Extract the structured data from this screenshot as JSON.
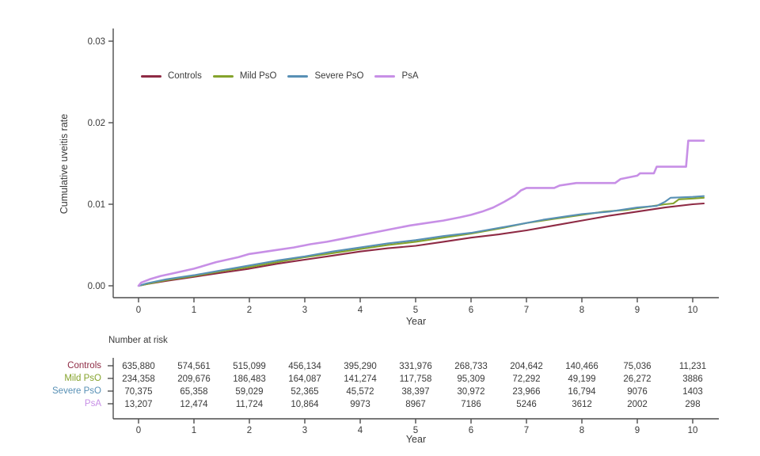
{
  "figure": {
    "ylabel": "Cumulative uveitis rate",
    "xlabel": "Year",
    "risk_header": "Number at risk",
    "risk_xlabel": "Year"
  },
  "chart_data": {
    "type": "line",
    "title": "",
    "xlabel": "Year",
    "ylabel": "Cumulative uveitis rate",
    "xlim": [
      0,
      10.5
    ],
    "ylim": [
      0,
      0.03
    ],
    "grid": false,
    "legend_position": "top-inside",
    "axis_color": "#4c4c4c",
    "text_color": "#3a3a3a",
    "x_ticks": [
      0,
      1,
      2,
      3,
      4,
      5,
      6,
      7,
      8,
      9,
      10
    ],
    "y_tick_values": [
      0,
      0.01,
      0.02,
      0.03
    ],
    "y_tick_labels": [
      "0.00",
      "0.01",
      "0.02",
      "0.03"
    ],
    "series": [
      {
        "name": "Controls",
        "color": "#8e2a44",
        "points": [
          [
            0,
            0
          ],
          [
            0.15,
            0.0002
          ],
          [
            0.5,
            0.0006
          ],
          [
            1,
            0.0011
          ],
          [
            1.5,
            0.0016
          ],
          [
            2,
            0.0021
          ],
          [
            2.5,
            0.0027
          ],
          [
            3,
            0.0032
          ],
          [
            3.5,
            0.0037
          ],
          [
            4,
            0.0042
          ],
          [
            4.5,
            0.0046
          ],
          [
            5,
            0.0049
          ],
          [
            5.5,
            0.0054
          ],
          [
            6,
            0.0059
          ],
          [
            6.5,
            0.0063
          ],
          [
            7,
            0.0068
          ],
          [
            7.5,
            0.0074
          ],
          [
            8,
            0.008
          ],
          [
            8.5,
            0.0086
          ],
          [
            9,
            0.0091
          ],
          [
            9.5,
            0.0096
          ],
          [
            10,
            0.01
          ],
          [
            10.2,
            0.0101
          ]
        ]
      },
      {
        "name": "Mild PsO",
        "color": "#85a32c",
        "points": [
          [
            0,
            0
          ],
          [
            0.15,
            0.0002
          ],
          [
            0.5,
            0.0007
          ],
          [
            1,
            0.0012
          ],
          [
            1.5,
            0.0018
          ],
          [
            2,
            0.0023
          ],
          [
            2.5,
            0.0029
          ],
          [
            3,
            0.0035
          ],
          [
            3.5,
            0.004
          ],
          [
            4,
            0.0045
          ],
          [
            4.5,
            0.005
          ],
          [
            5,
            0.0054
          ],
          [
            5.5,
            0.0059
          ],
          [
            6,
            0.0064
          ],
          [
            6.5,
            0.007
          ],
          [
            7,
            0.0077
          ],
          [
            7.5,
            0.0082
          ],
          [
            8,
            0.0087
          ],
          [
            8.4,
            0.0091
          ],
          [
            8.8,
            0.0093
          ],
          [
            9,
            0.0095
          ],
          [
            9.3,
            0.0098
          ],
          [
            9.5,
            0.01
          ],
          [
            9.65,
            0.0101
          ],
          [
            9.75,
            0.0106
          ],
          [
            10,
            0.0107
          ],
          [
            10.2,
            0.0108
          ]
        ]
      },
      {
        "name": "Severe PsO",
        "color": "#5890b5",
        "points": [
          [
            0,
            0
          ],
          [
            0.15,
            0.0003
          ],
          [
            0.5,
            0.0008
          ],
          [
            1,
            0.0013
          ],
          [
            1.5,
            0.0019
          ],
          [
            2,
            0.0025
          ],
          [
            2.5,
            0.0031
          ],
          [
            3,
            0.0036
          ],
          [
            3.5,
            0.0042
          ],
          [
            4,
            0.0047
          ],
          [
            4.5,
            0.0052
          ],
          [
            5,
            0.0056
          ],
          [
            5.5,
            0.0061
          ],
          [
            6,
            0.0065
          ],
          [
            6.5,
            0.0071
          ],
          [
            7,
            0.0077
          ],
          [
            7.3,
            0.0081
          ],
          [
            7.7,
            0.0085
          ],
          [
            8,
            0.0088
          ],
          [
            8.5,
            0.0091
          ],
          [
            9,
            0.0096
          ],
          [
            9.35,
            0.0098
          ],
          [
            9.5,
            0.0103
          ],
          [
            9.6,
            0.0108
          ],
          [
            10,
            0.0109
          ],
          [
            10.2,
            0.011
          ]
        ]
      },
      {
        "name": "PsA",
        "color": "#c78fe6",
        "points": [
          [
            0,
            0
          ],
          [
            0.05,
            0.0004
          ],
          [
            0.2,
            0.0008
          ],
          [
            0.4,
            0.0012
          ],
          [
            0.6,
            0.0015
          ],
          [
            0.8,
            0.0018
          ],
          [
            1,
            0.0021
          ],
          [
            1.2,
            0.0025
          ],
          [
            1.4,
            0.0029
          ],
          [
            1.6,
            0.0032
          ],
          [
            1.8,
            0.0035
          ],
          [
            2,
            0.0039
          ],
          [
            2.2,
            0.0041
          ],
          [
            2.5,
            0.0044
          ],
          [
            2.8,
            0.0047
          ],
          [
            3.1,
            0.0051
          ],
          [
            3.4,
            0.0054
          ],
          [
            3.7,
            0.0058
          ],
          [
            4,
            0.0062
          ],
          [
            4.3,
            0.0066
          ],
          [
            4.6,
            0.007
          ],
          [
            4.9,
            0.0074
          ],
          [
            5.2,
            0.0077
          ],
          [
            5.5,
            0.008
          ],
          [
            5.8,
            0.0084
          ],
          [
            6,
            0.0087
          ],
          [
            6.2,
            0.0091
          ],
          [
            6.4,
            0.0096
          ],
          [
            6.6,
            0.0103
          ],
          [
            6.8,
            0.0111
          ],
          [
            6.9,
            0.0117
          ],
          [
            7,
            0.012
          ],
          [
            7.5,
            0.012
          ],
          [
            7.6,
            0.0123
          ],
          [
            7.9,
            0.0126
          ],
          [
            8.6,
            0.0126
          ],
          [
            8.7,
            0.0131
          ],
          [
            9,
            0.0135
          ],
          [
            9.05,
            0.0138
          ],
          [
            9.3,
            0.0138
          ],
          [
            9.35,
            0.0146
          ],
          [
            9.88,
            0.0146
          ],
          [
            9.92,
            0.0178
          ],
          [
            10.2,
            0.0178
          ]
        ]
      }
    ],
    "risk_table": {
      "header": "Number at risk",
      "time_points": [
        0,
        1,
        2,
        3,
        4,
        5,
        6,
        7,
        8,
        9,
        10
      ],
      "rows": [
        {
          "name": "Controls",
          "values": [
            "635,880",
            "574,561",
            "515,099",
            "456,134",
            "395,290",
            "331,976",
            "268,733",
            "204,642",
            "140,466",
            "75,036",
            "11,231"
          ]
        },
        {
          "name": "Mild PsO",
          "values": [
            "234,358",
            "209,676",
            "186,483",
            "164,087",
            "141,274",
            "117,758",
            "95,309",
            "72,292",
            "49,199",
            "26,272",
            "3886"
          ]
        },
        {
          "name": "Severe PsO",
          "values": [
            "70,375",
            "65,358",
            "59,029",
            "52,365",
            "45,572",
            "38,397",
            "30,972",
            "23,966",
            "16,794",
            "9076",
            "1403"
          ]
        },
        {
          "name": "PsA",
          "values": [
            "13,207",
            "12,474",
            "11,724",
            "10,864",
            "9973",
            "8967",
            "7186",
            "5246",
            "3612",
            "2002",
            "298"
          ]
        }
      ]
    }
  }
}
